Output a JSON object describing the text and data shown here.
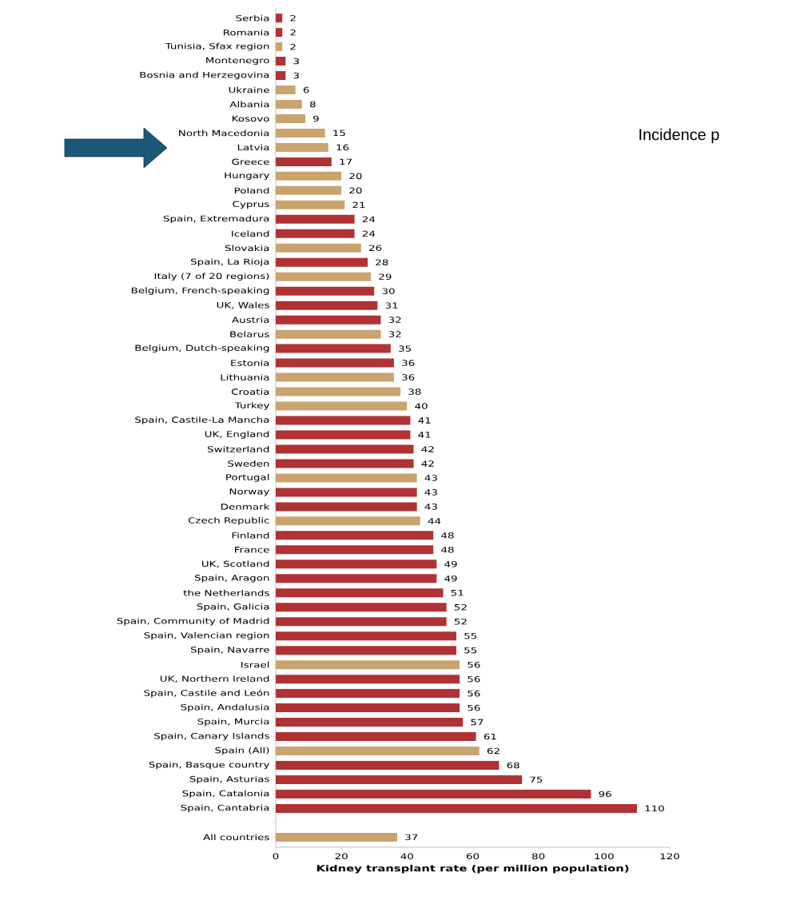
{
  "chart_data": {
    "type": "bar",
    "orientation": "horizontal",
    "categories": [
      "Serbia",
      "Romania",
      "Tunisia, Sfax region",
      "Montenegro",
      "Bosnia and Herzegovina",
      "Ukraine",
      "Albania",
      "Kosovo",
      "North Macedonia",
      "Latvia",
      "Greece",
      "Hungary",
      "Poland",
      "Cyprus",
      "Spain, Extremadura",
      "Iceland",
      "Slovakia",
      "Spain, La Rioja",
      "Italy (7 of 20 regions)",
      "Belgium, French-speaking",
      "UK, Wales",
      "Austria",
      "Belarus",
      "Belgium, Dutch-speaking",
      "Estonia",
      "Lithuania",
      "Croatia",
      "Turkey",
      "Spain, Castile-La Mancha",
      "UK, England",
      "Switzerland",
      "Sweden",
      "Portugal",
      "Norway",
      "Denmark",
      "Czech Republic",
      "Finland",
      "France",
      "UK, Scotland",
      "Spain, Aragon",
      "the Netherlands",
      "Spain, Galicia",
      "Spain, Community of Madrid",
      "Spain, Valencian region",
      "Spain, Navarre",
      "Israel",
      "UK, Northern Ireland",
      "Spain, Castile and León",
      "Spain, Andalusia",
      "Spain, Murcia",
      "Spain, Canary Islands",
      "Spain (All)",
      "Spain, Basque country",
      "Spain, Asturias",
      "Spain, Catalonia",
      "Spain, Cantabria",
      null,
      "All countries"
    ],
    "values": [
      2,
      2,
      2,
      3,
      3,
      6,
      8,
      9,
      15,
      16,
      17,
      20,
      20,
      21,
      24,
      24,
      26,
      28,
      29,
      30,
      31,
      32,
      32,
      35,
      36,
      36,
      38,
      40,
      41,
      41,
      42,
      42,
      43,
      43,
      43,
      44,
      48,
      48,
      49,
      49,
      51,
      52,
      52,
      55,
      55,
      56,
      56,
      56,
      56,
      57,
      61,
      62,
      68,
      75,
      96,
      110,
      null,
      37
    ],
    "colors": [
      "#b03234",
      "#b03234",
      "#c9a46e",
      "#b03234",
      "#b03234",
      "#c9a46e",
      "#c9a46e",
      "#c9a46e",
      "#c9a46e",
      "#c9a46e",
      "#b03234",
      "#c9a46e",
      "#c9a46e",
      "#c9a46e",
      "#b03234",
      "#b03234",
      "#c9a46e",
      "#b03234",
      "#c9a46e",
      "#b03234",
      "#b03234",
      "#b03234",
      "#c9a46e",
      "#b03234",
      "#b03234",
      "#c9a46e",
      "#c9a46e",
      "#c9a46e",
      "#b03234",
      "#b03234",
      "#b03234",
      "#b03234",
      "#c9a46e",
      "#b03234",
      "#b03234",
      "#c9a46e",
      "#b03234",
      "#b03234",
      "#b03234",
      "#b03234",
      "#b03234",
      "#b03234",
      "#b03234",
      "#b03234",
      "#b03234",
      "#c9a46e",
      "#b03234",
      "#b03234",
      "#b03234",
      "#b03234",
      "#b03234",
      "#c9a46e",
      "#b03234",
      "#b03234",
      "#b03234",
      "#b03234",
      null,
      "#c9a46e"
    ],
    "data_labels": true,
    "xlim": [
      0,
      120
    ],
    "xticks": [
      0,
      20,
      40,
      60,
      80,
      100,
      120
    ],
    "xlabel": "Kidney transplant rate (per million population)",
    "annotations": [
      "Incidence p"
    ]
  }
}
